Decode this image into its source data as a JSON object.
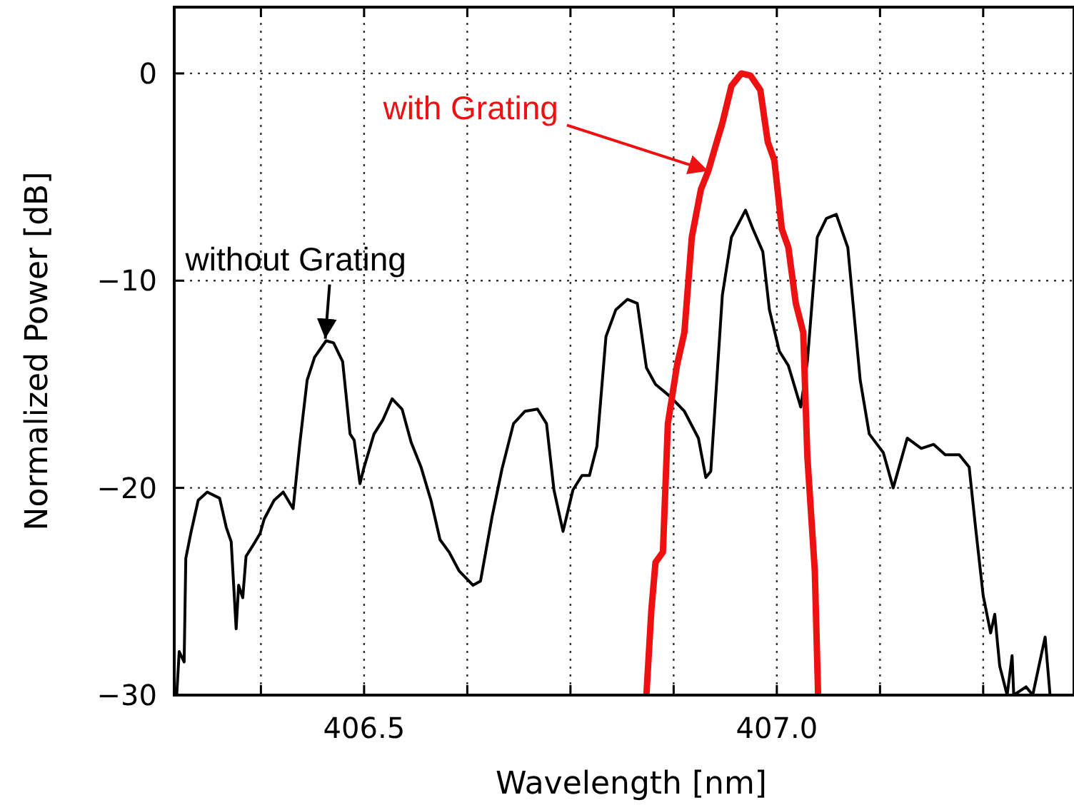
{
  "chart_data": {
    "type": "line",
    "xlabel": "Wavelength [nm]",
    "ylabel": "Normalized Power [dB]",
    "xlim": [
      406.27,
      407.36
    ],
    "ylim": [
      -30,
      3.2
    ],
    "xticks": [
      {
        "value": 406.375,
        "label": null
      },
      406.5,
      {
        "value": 406.625,
        "label": null
      },
      {
        "value": 406.75,
        "label": null
      },
      {
        "value": 406.875,
        "label": null
      },
      {
        "value": 407.0,
        "label": "407.0"
      },
      {
        "value": 407.125,
        "label": null
      },
      {
        "value": 407.25,
        "label": null
      }
    ],
    "yticks": [
      -30,
      -20,
      -10,
      0
    ],
    "grid": true,
    "line_style": "solid",
    "series": [
      {
        "color": "#000000",
        "x": [
          406.273,
          406.276,
          406.282,
          406.284,
          406.29,
          406.299,
          406.31,
          406.325,
          406.333,
          406.339,
          406.345,
          406.348,
          406.353,
          406.357,
          406.365,
          406.374,
          406.379,
          406.391,
          406.402,
          406.414,
          406.422,
          406.431,
          406.44,
          406.454,
          406.463,
          406.474,
          406.483,
          406.488,
          406.495,
          406.5,
          406.512,
          406.523,
          406.534,
          406.546,
          406.557,
          406.569,
          406.581,
          406.592,
          406.603,
          406.615,
          406.632,
          406.641,
          406.655,
          406.667,
          406.681,
          406.695,
          406.71,
          406.721,
          406.73,
          406.741,
          406.753,
          406.764,
          406.773,
          406.782,
          406.793,
          406.805,
          406.819,
          406.831,
          406.842,
          406.853,
          406.871,
          406.888,
          406.905,
          406.914,
          406.92,
          406.934,
          406.945,
          406.962,
          406.971,
          406.983,
          406.991,
          407.003,
          407.014,
          407.029,
          407.037,
          407.049,
          407.06,
          407.072,
          407.086,
          407.101,
          407.112,
          407.129,
          407.141,
          407.158,
          407.175,
          407.19,
          407.204,
          407.221,
          407.233,
          407.241,
          407.25,
          407.259,
          407.264,
          407.27,
          407.279,
          407.285,
          407.287,
          407.302,
          407.31,
          407.325,
          407.331,
          407.345
        ],
        "values": [
          -30,
          -27.9,
          -28.4,
          -23.4,
          -22.2,
          -20.6,
          -20.2,
          -20.5,
          -21.9,
          -22.6,
          -26.8,
          -24.7,
          -25.3,
          -23.3,
          -22.8,
          -22.2,
          -21.5,
          -20.6,
          -20.2,
          -21.0,
          -17.9,
          -14.8,
          -13.7,
          -12.9,
          -13.0,
          -13.9,
          -17.4,
          -17.7,
          -19.8,
          -19.0,
          -17.4,
          -16.7,
          -15.7,
          -16.2,
          -17.8,
          -19.0,
          -20.6,
          -22.5,
          -23.1,
          -24.0,
          -24.7,
          -24.5,
          -21.4,
          -19.1,
          -16.9,
          -16.3,
          -16.2,
          -16.9,
          -20.1,
          -22.1,
          -20.1,
          -19.4,
          -19.4,
          -18.0,
          -12.7,
          -11.4,
          -10.9,
          -11.1,
          -14.2,
          -15.0,
          -15.6,
          -16.3,
          -17.6,
          -19.5,
          -19.2,
          -10.7,
          -7.9,
          -6.6,
          -7.5,
          -8.6,
          -11.4,
          -13.4,
          -14.1,
          -16.1,
          -13.9,
          -7.9,
          -7.0,
          -6.8,
          -8.4,
          -14.8,
          -17.4,
          -18.3,
          -20.0,
          -17.6,
          -18.1,
          -17.9,
          -18.4,
          -18.4,
          -19.0,
          -22.0,
          -25.2,
          -27.0,
          -26.1,
          -28.6,
          -30,
          -28.1,
          -30,
          -29.6,
          -30,
          -27.2,
          -30,
          -30
        ]
      },
      {
        "color": "#ee1111",
        "x": [
          406.842,
          406.848,
          406.853,
          406.862,
          406.868,
          406.879,
          406.888,
          406.897,
          406.908,
          406.917,
          406.925,
          406.934,
          406.945,
          406.957,
          406.968,
          406.98,
          406.989,
          406.997,
          407.006,
          407.014,
          407.023,
          407.032,
          407.037,
          407.046,
          407.05
        ],
        "values": [
          -30,
          -25.9,
          -23.6,
          -23.1,
          -16.9,
          -14.1,
          -12.5,
          -7.9,
          -5.6,
          -4.7,
          -3.6,
          -2.4,
          -0.6,
          0,
          -0.1,
          -0.8,
          -3.3,
          -4.2,
          -7.5,
          -8.4,
          -11.1,
          -12.5,
          -18.5,
          -24.0,
          -30
        ]
      }
    ],
    "annotations": [
      {
        "text": "without Grating",
        "x": 406.453,
        "y": -12.8
      },
      {
        "text": "with Grating",
        "x": 406.917,
        "y": -4.7
      }
    ]
  }
}
